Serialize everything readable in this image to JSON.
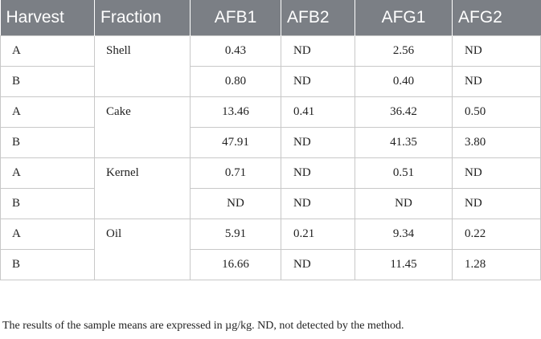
{
  "table": {
    "headers": [
      "Harvest",
      "Fraction",
      "AFB1",
      "AFB2",
      "AFG1",
      "AFG2"
    ],
    "groups": [
      {
        "fraction": "Shell",
        "rows": [
          {
            "harvest": "A",
            "afb1": "0.43",
            "afb2": "ND",
            "afg1": "2.56",
            "afg2": "ND"
          },
          {
            "harvest": "B",
            "afb1": "0.80",
            "afb2": "ND",
            "afg1": "0.40",
            "afg2": "ND"
          }
        ]
      },
      {
        "fraction": "Cake",
        "rows": [
          {
            "harvest": "A",
            "afb1": "13.46",
            "afb2": "0.41",
            "afg1": "36.42",
            "afg2": "0.50"
          },
          {
            "harvest": "B",
            "afb1": "47.91",
            "afb2": "ND",
            "afg1": "41.35",
            "afg2": "3.80"
          }
        ]
      },
      {
        "fraction": "Kernel",
        "rows": [
          {
            "harvest": "A",
            "afb1": "0.71",
            "afb2": "ND",
            "afg1": "0.51",
            "afg2": "ND"
          },
          {
            "harvest": "B",
            "afb1": "ND",
            "afb2": "ND",
            "afg1": "ND",
            "afg2": "ND"
          }
        ]
      },
      {
        "fraction": "Oil",
        "rows": [
          {
            "harvest": "A",
            "afb1": "5.91",
            "afb2": "0.21",
            "afg1": "9.34",
            "afg2": "0.22"
          },
          {
            "harvest": "B",
            "afb1": "16.66",
            "afb2": "ND",
            "afg1": "11.45",
            "afg2": "1.28"
          }
        ]
      }
    ]
  },
  "footnote": "The results of the sample means are expressed in µg/kg. ND, not detected by the method."
}
